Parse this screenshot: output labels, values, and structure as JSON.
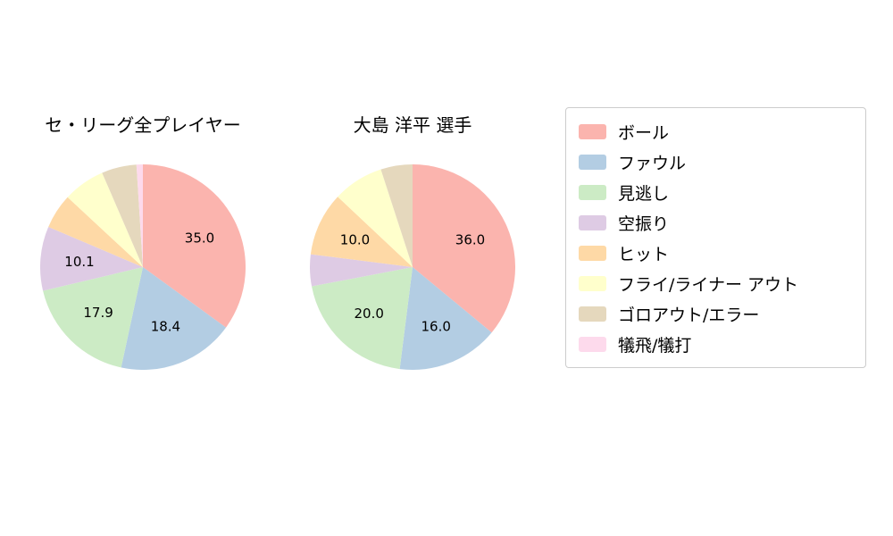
{
  "page": {
    "background_color": "#ffffff",
    "text_color": "#000000"
  },
  "legend": {
    "border_color": "#cccccc",
    "entries": [
      {
        "label": "ボール",
        "color": "#fbb4ae"
      },
      {
        "label": "ファウル",
        "color": "#b3cde3"
      },
      {
        "label": "見逃し",
        "color": "#ccebc5"
      },
      {
        "label": "空振り",
        "color": "#decbe4"
      },
      {
        "label": "ヒット",
        "color": "#fed9a6"
      },
      {
        "label": "フライ/ライナー アウト",
        "color": "#ffffcc"
      },
      {
        "label": "ゴロアウト/エラー",
        "color": "#e5d8bd"
      },
      {
        "label": "犠飛/犠打",
        "color": "#fddaec"
      }
    ]
  },
  "chart_data": [
    {
      "type": "pie",
      "title": "セ・リーグ全プレイヤー",
      "categories": [
        "ボール",
        "ファウル",
        "見逃し",
        "空振り",
        "ヒット",
        "フライ/ライナー アウト",
        "ゴロアウト/エラー",
        "犠飛/犠打"
      ],
      "values": [
        35.0,
        18.4,
        17.9,
        10.1,
        5.5,
        6.6,
        5.5,
        1.0
      ],
      "colors": [
        "#fbb4ae",
        "#b3cde3",
        "#ccebc5",
        "#decbe4",
        "#fed9a6",
        "#ffffcc",
        "#e5d8bd",
        "#fddaec"
      ],
      "visible_value_labels": [
        "35.0",
        "18.4",
        "17.9",
        "10.1"
      ],
      "start_angle": 90,
      "clockwise": true,
      "label_threshold": 10,
      "label_distance": 0.62,
      "legend_position": "right"
    },
    {
      "type": "pie",
      "title": "大島 洋平  選手",
      "categories": [
        "ボール",
        "ファウル",
        "見逃し",
        "空振り",
        "ヒット",
        "フライ/ライナー アウト",
        "ゴロアウト/エラー",
        "犠飛/犠打"
      ],
      "values": [
        36.0,
        16.0,
        20.0,
        5.0,
        10.0,
        8.0,
        5.0,
        0.0
      ],
      "colors": [
        "#fbb4ae",
        "#b3cde3",
        "#ccebc5",
        "#decbe4",
        "#fed9a6",
        "#ffffcc",
        "#e5d8bd",
        "#fddaec"
      ],
      "visible_value_labels": [
        "36.0",
        "16.0",
        "20.0",
        "10.0"
      ],
      "start_angle": 90,
      "clockwise": true,
      "label_threshold": 10,
      "label_distance": 0.62,
      "legend_position": "right"
    }
  ]
}
